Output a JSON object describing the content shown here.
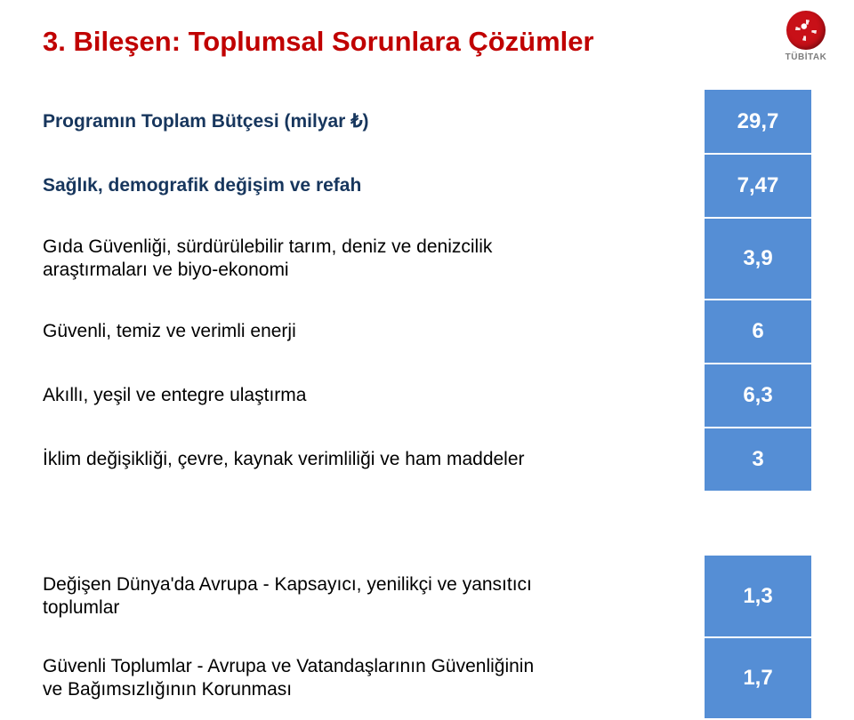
{
  "logo": {
    "caption": "TÜBİTAK"
  },
  "title": "3. Bileşen: Toplumsal Sorunlara Çözümler",
  "table": {
    "value_bg": "#558ed5",
    "value_color": "#ffffff",
    "header_label_color": "#17365d",
    "body_label_color": "#000000",
    "rows": [
      {
        "label": "Programın Toplam Bütçesi (milyar ₺)",
        "value": "29,7",
        "header": true
      },
      {
        "label": "Sağlık, demografik değişim ve refah",
        "value": "7,47",
        "header": true
      },
      {
        "label_line1": "Gıda Güvenliği, sürdürülebilir tarım, deniz ve denizcilik",
        "label_line2": "araştırmaları ve biyo-ekonomi",
        "value": "3,9",
        "header": false,
        "multiline": true
      },
      {
        "label": "Güvenli, temiz ve verimli enerji",
        "value": "6",
        "header": false
      },
      {
        "label": "Akıllı, yeşil ve entegre ulaştırma",
        "value": "6,3",
        "header": false
      },
      {
        "label": "İklim değişikliği, çevre, kaynak verimliliği ve ham maddeler",
        "value": "3",
        "header": false
      },
      {
        "label_line1": "Değişen Dünya'da Avrupa - Kapsayıcı, yenilikçi ve yansıtıcı",
        "label_line2": "toplumlar",
        "value": "1,3",
        "header": false,
        "multiline": true,
        "gap_before": true
      },
      {
        "label_line1": "Güvenli Toplumlar - Avrupa ve Vatandaşlarının Güvenliğinin",
        "label_line2": "ve Bağımsızlığının Korunması",
        "value": "1,7",
        "header": false,
        "multiline": true
      }
    ]
  }
}
